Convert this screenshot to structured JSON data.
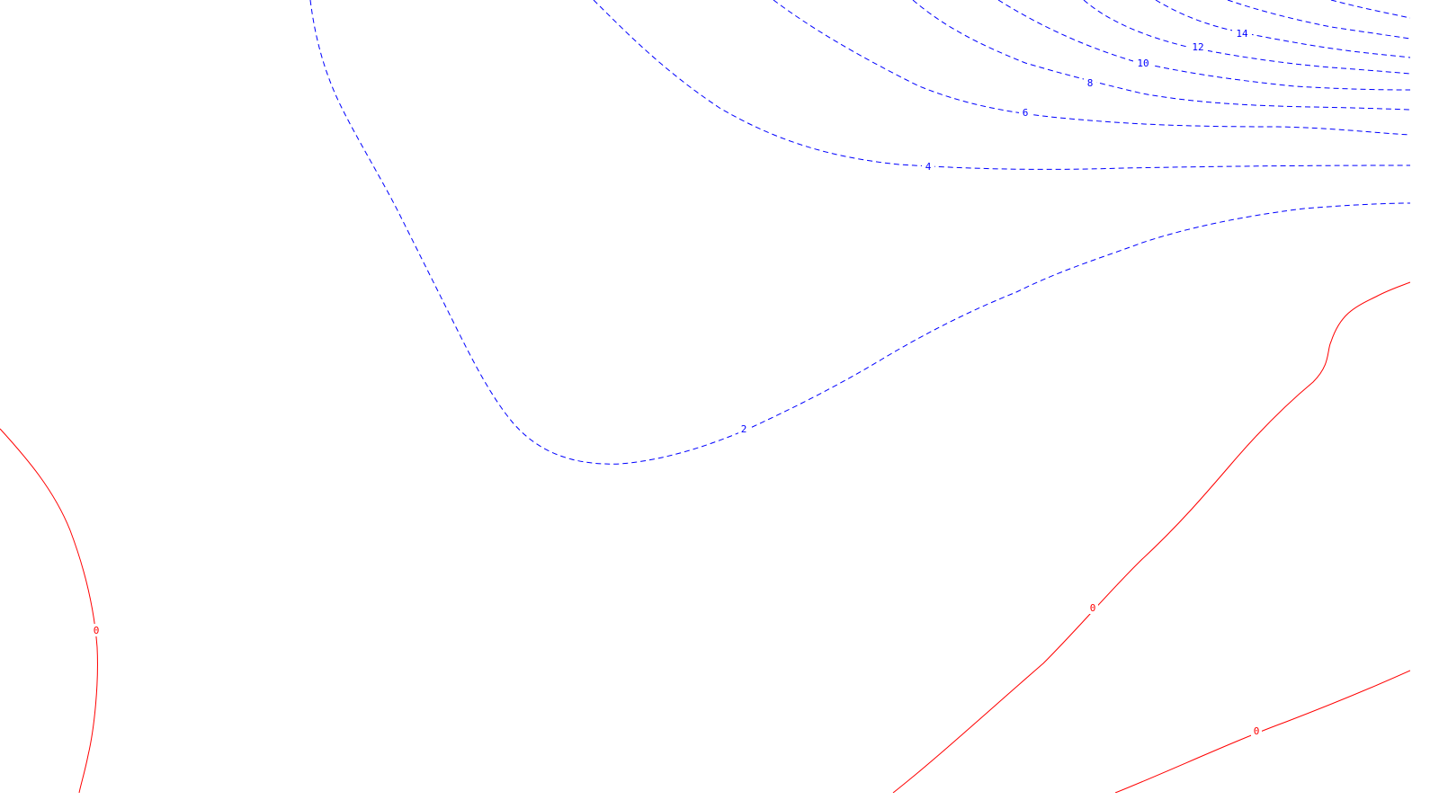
{
  "colors": {
    "positive_contour": "#0000ff",
    "zero_contour": "#ff0000",
    "background": "#ffffff"
  },
  "contour_labels": [
    {
      "id": "c2",
      "value": "2"
    },
    {
      "id": "c4",
      "value": "4"
    },
    {
      "id": "c6",
      "value": "6"
    },
    {
      "id": "c8",
      "value": "8"
    },
    {
      "id": "c10",
      "value": "10"
    },
    {
      "id": "c12",
      "value": "12"
    },
    {
      "id": "c14",
      "value": "14"
    },
    {
      "id": "z0a",
      "value": "0"
    },
    {
      "id": "z0b",
      "value": "0"
    },
    {
      "id": "z0c",
      "value": "0"
    }
  ]
}
